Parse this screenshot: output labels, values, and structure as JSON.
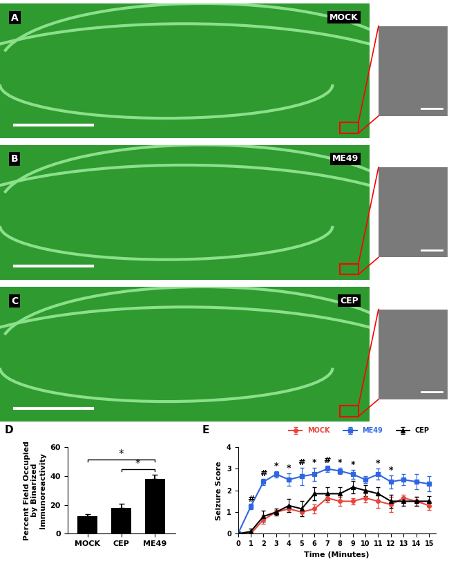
{
  "panels": [
    {
      "label": "A",
      "name": "MOCK"
    },
    {
      "label": "B",
      "name": "ME49"
    },
    {
      "label": "C",
      "name": "CEP"
    }
  ],
  "chart_data": [
    {
      "type": "bar",
      "panel_label": "D",
      "categories": [
        "MOCK",
        "CEP",
        "ME49"
      ],
      "values": [
        12,
        18,
        38
      ],
      "errors": [
        1.5,
        3,
        3
      ],
      "color": "#000000",
      "ylabel": "Percent Field Occupied\nby Binarized\nImmunoreactivity",
      "ylim": [
        0,
        60
      ],
      "yticks": [
        0,
        20,
        40,
        60
      ],
      "annotations": [
        {
          "text": "*",
          "from": "MOCK",
          "to": "ME49"
        },
        {
          "text": "*",
          "from": "CEP",
          "to": "ME49"
        }
      ]
    },
    {
      "type": "line",
      "panel_label": "E",
      "x": [
        0,
        1,
        2,
        3,
        4,
        5,
        6,
        7,
        8,
        9,
        10,
        11,
        12,
        13,
        14,
        15
      ],
      "series": [
        {
          "name": "MOCK",
          "color": "#e8463c",
          "marker": "o",
          "line_style": "solid",
          "values": [
            0,
            0,
            0.65,
            1.0,
            1.15,
            1.0,
            1.15,
            1.65,
            1.5,
            1.5,
            1.65,
            1.5,
            1.35,
            1.65,
            1.5,
            1.3
          ],
          "errors": [
            0,
            0.1,
            0.2,
            0.1,
            0.15,
            0.05,
            0.2,
            0.2,
            0.2,
            0.15,
            0.2,
            0.3,
            0.35,
            0.15,
            0.2,
            0.2
          ]
        },
        {
          "name": "ME49",
          "color": "#2f66e0",
          "marker": "s",
          "line_style": "solid",
          "values": [
            0,
            1.25,
            2.4,
            2.75,
            2.5,
            2.65,
            2.75,
            3.0,
            2.9,
            2.75,
            2.5,
            2.75,
            2.4,
            2.5,
            2.4,
            2.3
          ],
          "errors": [
            0,
            0.12,
            0.15,
            0.15,
            0.3,
            0.4,
            0.3,
            0.15,
            0.15,
            0.2,
            0.15,
            0.25,
            0.3,
            0.25,
            0.35,
            0.35
          ]
        },
        {
          "name": "CEP",
          "color": "#000000",
          "marker": "^",
          "line_style": "solid",
          "values": [
            0,
            0.1,
            0.8,
            1.0,
            1.3,
            1.15,
            1.85,
            1.85,
            1.85,
            2.15,
            2.0,
            1.85,
            1.5,
            1.5,
            1.5,
            1.5
          ],
          "errors": [
            0,
            0.15,
            0.25,
            0.15,
            0.3,
            0.35,
            0.3,
            0.3,
            0.3,
            0.3,
            0.25,
            0.3,
            0.3,
            0.2,
            0.2,
            0.25
          ]
        }
      ],
      "xlabel": "Time (Minutes)",
      "ylabel": "Seizure Score",
      "xlim": [
        0,
        15.5
      ],
      "xticks": [
        0,
        1,
        2,
        3,
        4,
        5,
        6,
        7,
        8,
        9,
        10,
        11,
        12,
        13,
        14,
        15
      ],
      "ylim": [
        0,
        4
      ],
      "yticks": [
        0,
        1,
        2,
        3,
        4
      ],
      "legend": "upper right",
      "annotations": [
        {
          "x": 1,
          "text": "#"
        },
        {
          "x": 2,
          "text": "#"
        },
        {
          "x": 3,
          "text": "*"
        },
        {
          "x": 4,
          "text": "*"
        },
        {
          "x": 5,
          "text": "#"
        },
        {
          "x": 6,
          "text": "*"
        },
        {
          "x": 7,
          "text": "#"
        },
        {
          "x": 8,
          "text": "*"
        },
        {
          "x": 9,
          "text": "*"
        },
        {
          "x": 11,
          "text": "*"
        },
        {
          "x": 12,
          "text": "*"
        }
      ]
    }
  ]
}
